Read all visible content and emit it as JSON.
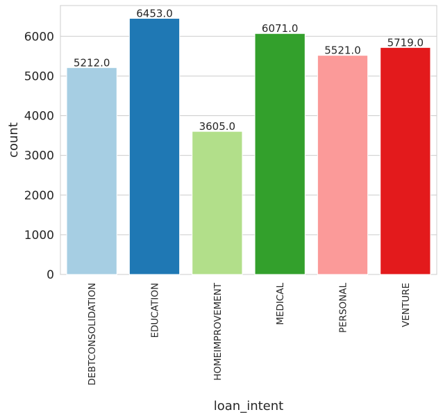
{
  "chart_data": {
    "type": "bar",
    "title": "",
    "xlabel": "loan_intent",
    "ylabel": "count",
    "categories": [
      "DEBTCONSOLIDATION",
      "EDUCATION",
      "HOMEIMPROVEMENT",
      "MEDICAL",
      "PERSONAL",
      "VENTURE"
    ],
    "values": [
      5212,
      6453,
      3605,
      6071,
      5521,
      5719
    ],
    "value_labels": [
      "5212.0",
      "6453.0",
      "3605.0",
      "6071.0",
      "5521.0",
      "5719.0"
    ],
    "colors": [
      "#a6cee3",
      "#1f78b4",
      "#b2df8a",
      "#33a02c",
      "#fb9a99",
      "#e31a1c"
    ],
    "yticks": [
      0,
      1000,
      2000,
      3000,
      4000,
      5000,
      6000
    ],
    "ytick_labels": [
      "0",
      "1000",
      "2000",
      "3000",
      "4000",
      "5000",
      "6000"
    ],
    "ylim": [
      0,
      6775.65
    ],
    "grid": true,
    "style": "seaborn whitegrid"
  }
}
